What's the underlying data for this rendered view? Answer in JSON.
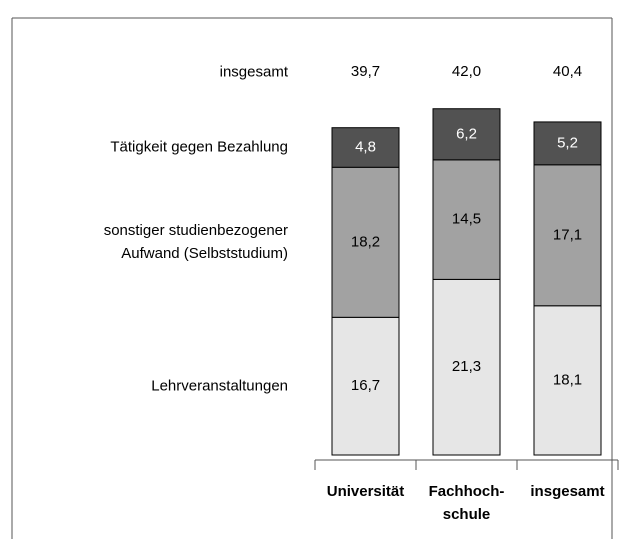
{
  "chart_data": {
    "type": "stacked_bar",
    "categories": [
      "Universität",
      "Fachhoch-\nschule",
      "insgesamt"
    ],
    "series": [
      {
        "name": "Lehrveranstaltungen",
        "color": "#e6e6e6",
        "values": [
          16.7,
          21.3,
          18.1
        ],
        "value_labels": [
          "16,7",
          "21,3",
          "18,1"
        ]
      },
      {
        "name": "sonstiger studienbezogener\nAufwand (Selbststudium)",
        "color": "#a2a2a2",
        "values": [
          18.2,
          14.5,
          17.1
        ],
        "value_labels": [
          "18,2",
          "14,5",
          "17,1"
        ]
      },
      {
        "name": "Tätigkeit gegen Bezahlung",
        "color": "#525252",
        "values": [
          4.8,
          6.2,
          5.2
        ],
        "value_labels": [
          "4,8",
          "6,2",
          "5,2"
        ]
      }
    ],
    "totals": {
      "name": "insgesamt",
      "values": [
        39.7,
        42.0,
        40.4
      ],
      "value_labels": [
        "39,7",
        "42,0",
        "40,4"
      ]
    },
    "ylim": [
      0,
      45
    ]
  }
}
